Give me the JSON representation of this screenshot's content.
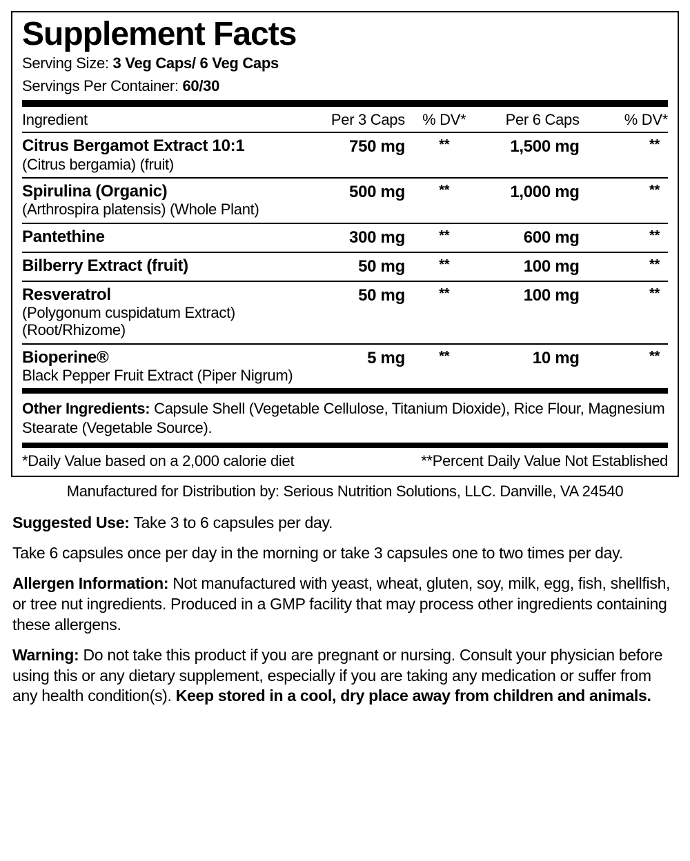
{
  "panel": {
    "title": "Supplement Facts",
    "serving_size_label": "Serving Size:",
    "serving_size_value": "3 Veg Caps/ 6 Veg Caps",
    "servings_per_label": "Servings Per Container:",
    "servings_per_value": "60/30",
    "columns": {
      "ingredient": "Ingredient",
      "per3": "Per 3 Caps",
      "dv1": "% DV*",
      "per6": "Per 6 Caps",
      "dv2": "% DV*"
    },
    "rows": [
      {
        "name": "Citrus Bergamot Extract 10:1",
        "sub": "(Citrus bergamia) (fruit)",
        "per3": "750 mg",
        "dv1": "**",
        "per6": "1,500 mg",
        "dv2": "**"
      },
      {
        "name": "Spirulina (Organic)",
        "sub": "(Arthrospira platensis) (Whole Plant)",
        "per3": "500 mg",
        "dv1": "**",
        "per6": "1,000 mg",
        "dv2": "**"
      },
      {
        "name": "Pantethine",
        "sub": "",
        "per3": "300 mg",
        "dv1": "**",
        "per6": "600 mg",
        "dv2": "**"
      },
      {
        "name": "Bilberry Extract (fruit)",
        "sub": "",
        "per3": "50 mg",
        "dv1": "**",
        "per6": "100 mg",
        "dv2": "**"
      },
      {
        "name": "Resveratrol",
        "sub": "(Polygonum cuspidatum Extract) (Root/Rhizome)",
        "per3": "50 mg",
        "dv1": "**",
        "per6": "100 mg",
        "dv2": "**"
      },
      {
        "name": "Bioperine®",
        "sub": "Black Pepper Fruit Extract (Piper Nigrum)",
        "per3": "5 mg",
        "dv1": "**",
        "per6": "10 mg",
        "dv2": "**"
      }
    ],
    "other_ingredients_label": "Other Ingredients:",
    "other_ingredients_text": "Capsule Shell (Vegetable Cellulose, Titanium Dioxide), Rice Flour, Magnesium Stearate (Vegetable Source).",
    "footnote_left": "*Daily Value based on a 2,000 calorie diet",
    "footnote_right": "**Percent Daily Value Not Established"
  },
  "mfg": "Manufactured for Distribution by: Serious Nutrition Solutions, LLC. Danville, VA 24540",
  "suggested": {
    "label": "Suggested Use:",
    "text": "Take 3 to 6 capsules per day."
  },
  "directions": "Take 6 capsules once per day in the morning or take 3 capsules one to two times per day.",
  "allergen": {
    "label": "Allergen Information:",
    "text": "Not manufactured with yeast, wheat, gluten, soy, milk, egg, fish, shellfish, or tree nut ingredients. Produced in a GMP facility that may process other ingredients containing these allergens."
  },
  "warning": {
    "label": "Warning:",
    "text": "Do not take this product if you are pregnant or nursing. Consult your physician before using this or any dietary supplement, especially if you are taking any medication or suffer from any health condition(s).",
    "tail": "Keep stored in a cool, dry place away from children and animals."
  }
}
